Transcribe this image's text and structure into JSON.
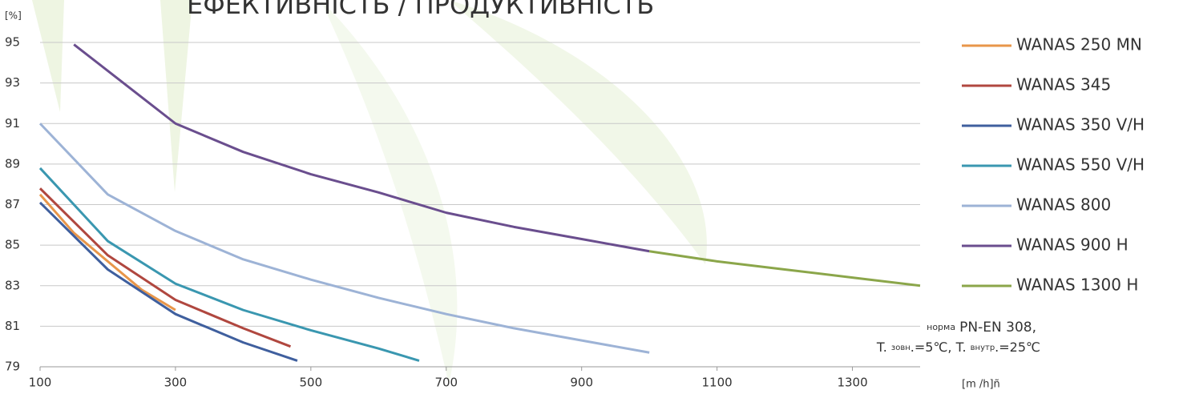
{
  "chart_data": {
    "type": "line",
    "title": "ЕФЕКТИВНІСТЬ / ПРОДУКТИВНІСТЬ",
    "y_label": "[%]",
    "x_label": "[m /h]ñ",
    "note": [
      "норма",
      "PN-EN 308,",
      "T.",
      "зовн",
      ".=5℃, T.",
      "внутр",
      ".=25℃"
    ],
    "xlim": [
      100,
      1400
    ],
    "ylim": [
      79,
      95
    ],
    "xticks": [
      100,
      300,
      500,
      700,
      900,
      1100,
      1300
    ],
    "yticks": [
      79,
      81,
      83,
      85,
      87,
      89,
      91,
      93,
      95
    ],
    "grid": true,
    "legend": "right",
    "series": [
      {
        "name": "WANAS 250 MN",
        "color": "#e8964a",
        "x": [
          100,
          150,
          200,
          250,
          300
        ],
        "values": [
          87.5,
          85.6,
          84.2,
          82.8,
          81.8
        ]
      },
      {
        "name": "WANAS 345",
        "color": "#b0473f",
        "x": [
          100,
          200,
          300,
          400,
          470
        ],
        "values": [
          87.8,
          84.5,
          82.3,
          80.9,
          80.0
        ]
      },
      {
        "name": "WANAS 350 V/H",
        "color": "#3f5f9e",
        "x": [
          100,
          200,
          300,
          400,
          480
        ],
        "values": [
          87.1,
          83.8,
          81.6,
          80.2,
          79.3
        ]
      },
      {
        "name": "WANAS 550 V/H",
        "color": "#3a97b0",
        "x": [
          100,
          200,
          300,
          400,
          500,
          600,
          660
        ],
        "values": [
          88.8,
          85.2,
          83.1,
          81.8,
          80.8,
          79.9,
          79.3
        ]
      },
      {
        "name": "WANAS 800",
        "color": "#9db3d6",
        "x": [
          100,
          200,
          300,
          400,
          500,
          600,
          700,
          800,
          900,
          1000
        ],
        "values": [
          91.0,
          87.5,
          85.7,
          84.3,
          83.3,
          82.4,
          81.6,
          80.9,
          80.3,
          79.7
        ]
      },
      {
        "name": "WANAS 900 H",
        "color": "#6a4e8e",
        "x": [
          150,
          200,
          300,
          400,
          500,
          600,
          700,
          800,
          900,
          1000
        ],
        "values": [
          94.9,
          93.6,
          91.0,
          89.6,
          88.5,
          87.6,
          86.6,
          85.9,
          85.3,
          84.7
        ]
      },
      {
        "name": "WANAS 1300 H",
        "color": "#8ba64a",
        "x": [
          1000,
          1100,
          1200,
          1300,
          1400
        ],
        "values": [
          84.7,
          84.2,
          83.8,
          83.4,
          83.0
        ]
      }
    ]
  }
}
